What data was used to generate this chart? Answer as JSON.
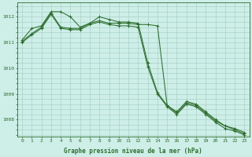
{
  "x": [
    0,
    1,
    2,
    3,
    4,
    5,
    6,
    7,
    8,
    9,
    10,
    11,
    12,
    13,
    14,
    15,
    16,
    17,
    18,
    19,
    20,
    21,
    22,
    23
  ],
  "y_top": [
    1011.1,
    1011.55,
    1011.65,
    1012.2,
    1012.2,
    1012.0,
    1011.6,
    1011.75,
    1012.0,
    1011.9,
    1011.8,
    1011.8,
    1011.75,
    1010.2,
    1009.05,
    1008.55,
    1008.3,
    1008.7,
    1008.6,
    1008.3,
    1008.0,
    1007.75,
    1007.65,
    1007.5
  ],
  "y_mid": [
    1011.05,
    1011.35,
    1011.6,
    1012.15,
    1011.6,
    1011.55,
    1011.55,
    1011.75,
    1011.85,
    1011.75,
    1011.75,
    1011.75,
    1011.7,
    1011.7,
    1011.65,
    1008.55,
    1008.25,
    1008.65,
    1008.55,
    1008.25,
    1007.95,
    1007.75,
    1007.6,
    1007.45
  ],
  "y_bot": [
    1011.0,
    1011.3,
    1011.55,
    1012.1,
    1011.55,
    1011.5,
    1011.5,
    1011.7,
    1011.8,
    1011.7,
    1011.65,
    1011.65,
    1011.6,
    1010.05,
    1009.0,
    1008.5,
    1008.2,
    1008.6,
    1008.5,
    1008.2,
    1007.9,
    1007.65,
    1007.55,
    1007.4
  ],
  "ylim": [
    1007.35,
    1012.55
  ],
  "yticks": [
    1008,
    1009,
    1010,
    1011,
    1012
  ],
  "xlim": [
    -0.5,
    23.5
  ],
  "bg_color": "#ceeee8",
  "grid_color": "#a0ccc0",
  "line_color": "#2d6e2d",
  "xlabel": "Graphe pression niveau de la mer (hPa)",
  "figsize": [
    3.2,
    2.0
  ],
  "dpi": 100
}
